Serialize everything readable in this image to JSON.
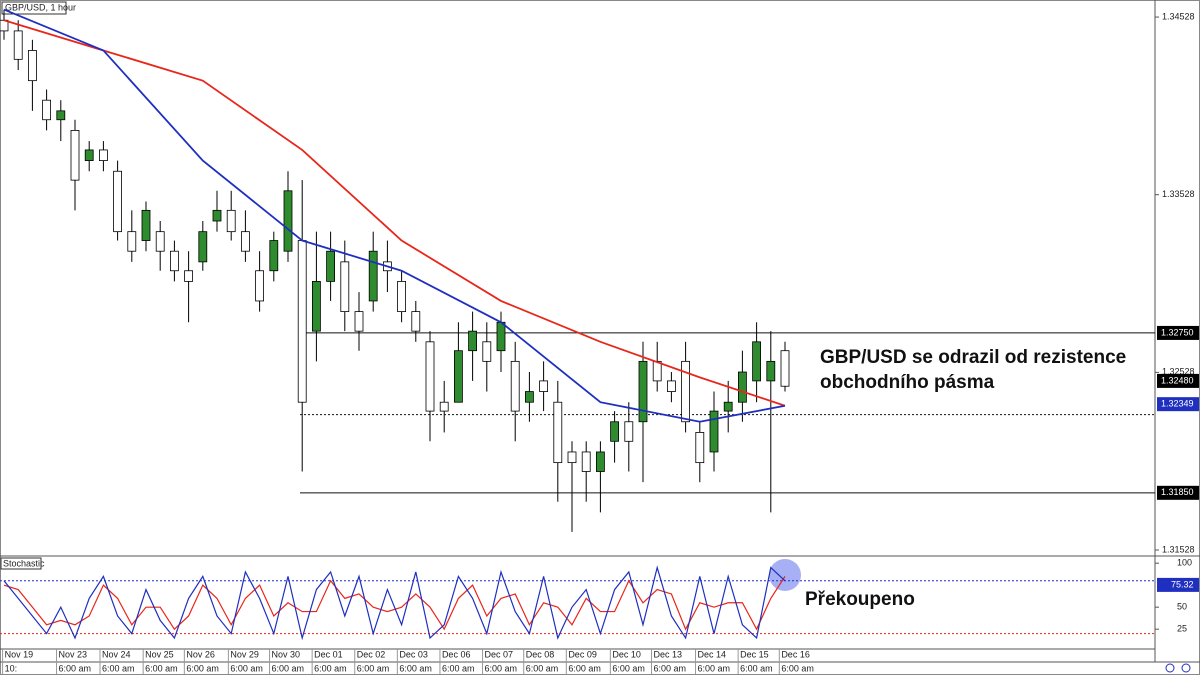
{
  "chart_data": {
    "type": "candlestick",
    "title": "GBP/USD, 1 hour",
    "up_color": "#2e8b2e",
    "down_color": "#ffffff",
    "wick_color": "#000000",
    "ylim": [
      1.315,
      1.34624
    ],
    "yticks": [
      1.34528,
      1.33528,
      1.32528,
      1.31528
    ],
    "xticks": [
      {
        "value": -0.1,
        "label": "Nov 19"
      },
      {
        "value": 3.7,
        "label": "Nov 23"
      },
      {
        "value": 6.76,
        "label": "Nov 24"
      },
      {
        "value": 9.8,
        "label": "Nov 25"
      },
      {
        "value": 12.7,
        "label": "Nov 26"
      },
      {
        "value": 15.8,
        "label": "Nov 29"
      },
      {
        "value": 18.7,
        "label": "Nov 30"
      },
      {
        "value": 21.7,
        "label": "Dec 01"
      },
      {
        "value": 24.7,
        "label": "Dec 02"
      },
      {
        "value": 27.7,
        "label": "Dec 03"
      },
      {
        "value": 30.7,
        "label": "Dec 06"
      },
      {
        "value": 33.7,
        "label": "Dec 07"
      },
      {
        "value": 36.6,
        "label": "Dec 08"
      },
      {
        "value": 39.6,
        "label": "Dec 09"
      },
      {
        "value": 42.7,
        "label": "Dec 10"
      },
      {
        "value": 45.6,
        "label": "Dec 13"
      },
      {
        "value": 48.7,
        "label": "Dec 14"
      },
      {
        "value": 51.7,
        "label": "Dec 15"
      },
      {
        "value": 54.6,
        "label": "Dec 16"
      }
    ],
    "xtick_times": [
      "10:",
      "6:00 am",
      "6:00 am",
      "6:00 am",
      "6:00 am",
      "6:00 am",
      "6:00 am",
      "6:00 am",
      "6:00 am",
      "6:00 am",
      "6:00 am",
      "6:00 am",
      "6:00 am",
      "6:00 am",
      "6:00 am",
      "6:00 am",
      "6:00 am",
      "6:00 am",
      "6:00 am"
    ],
    "ohlc": [
      [
        1.3451,
        1.3457,
        1.344,
        1.3445
      ],
      [
        1.3445,
        1.3451,
        1.3423,
        1.3429
      ],
      [
        1.3434,
        1.344,
        1.34,
        1.3417
      ],
      [
        1.3406,
        1.3412,
        1.3389,
        1.3395
      ],
      [
        1.3395,
        1.3406,
        1.3383,
        1.34
      ],
      [
        1.3389,
        1.3395,
        1.3344,
        1.3361
      ],
      [
        1.3372,
        1.3383,
        1.3366,
        1.3378
      ],
      [
        1.3378,
        1.3383,
        1.3366,
        1.3372
      ],
      [
        1.3366,
        1.3372,
        1.3327,
        1.3332
      ],
      [
        1.3332,
        1.3344,
        1.3315,
        1.3321
      ],
      [
        1.3327,
        1.3349,
        1.3321,
        1.3344
      ],
      [
        1.3332,
        1.3338,
        1.331,
        1.3321
      ],
      [
        1.3321,
        1.3327,
        1.3304,
        1.331
      ],
      [
        1.331,
        1.3321,
        1.3281,
        1.3304
      ],
      [
        1.3315,
        1.3338,
        1.331,
        1.3332
      ],
      [
        1.3338,
        1.3355,
        1.3332,
        1.3344
      ],
      [
        1.3344,
        1.3355,
        1.3327,
        1.3332
      ],
      [
        1.3332,
        1.3344,
        1.3315,
        1.3321
      ],
      [
        1.331,
        1.3321,
        1.3287,
        1.3293
      ],
      [
        1.331,
        1.3332,
        1.3304,
        1.3327
      ],
      [
        1.3321,
        1.3366,
        1.3315,
        1.3355
      ],
      [
        1.3327,
        1.3361,
        1.3197,
        1.3236
      ],
      [
        1.3276,
        1.3332,
        1.3259,
        1.3304
      ],
      [
        1.3304,
        1.3332,
        1.3293,
        1.3321
      ],
      [
        1.3315,
        1.3327,
        1.3276,
        1.3287
      ],
      [
        1.3287,
        1.3298,
        1.3265,
        1.3276
      ],
      [
        1.3293,
        1.3332,
        1.3287,
        1.3321
      ],
      [
        1.3315,
        1.3327,
        1.3298,
        1.331
      ],
      [
        1.3304,
        1.331,
        1.3281,
        1.3287
      ],
      [
        1.3287,
        1.3293,
        1.327,
        1.3276
      ],
      [
        1.327,
        1.3276,
        1.3214,
        1.3231
      ],
      [
        1.3236,
        1.3248,
        1.3219,
        1.3231
      ],
      [
        1.3236,
        1.3281,
        1.3236,
        1.3265
      ],
      [
        1.3265,
        1.3287,
        1.3248,
        1.3276
      ],
      [
        1.327,
        1.3281,
        1.3242,
        1.3259
      ],
      [
        1.3265,
        1.3287,
        1.3253,
        1.3281
      ],
      [
        1.3259,
        1.327,
        1.3214,
        1.3231
      ],
      [
        1.3236,
        1.3253,
        1.3225,
        1.3242
      ],
      [
        1.3248,
        1.3259,
        1.3231,
        1.3242
      ],
      [
        1.3236,
        1.3248,
        1.318,
        1.3202
      ],
      [
        1.3208,
        1.3214,
        1.3163,
        1.3202
      ],
      [
        1.3208,
        1.3214,
        1.318,
        1.3197
      ],
      [
        1.3197,
        1.3214,
        1.3174,
        1.3208
      ],
      [
        1.3214,
        1.3231,
        1.3202,
        1.3225
      ],
      [
        1.3225,
        1.3236,
        1.3197,
        1.3214
      ],
      [
        1.3225,
        1.327,
        1.3191,
        1.3259
      ],
      [
        1.3259,
        1.327,
        1.3242,
        1.3248
      ],
      [
        1.3248,
        1.3253,
        1.3236,
        1.3242
      ],
      [
        1.3259,
        1.327,
        1.3219,
        1.3225
      ],
      [
        1.3219,
        1.3225,
        1.3191,
        1.3202
      ],
      [
        1.3208,
        1.3242,
        1.3197,
        1.3231
      ],
      [
        1.3231,
        1.3248,
        1.3219,
        1.3236
      ],
      [
        1.3236,
        1.3265,
        1.3225,
        1.3253
      ],
      [
        1.3248,
        1.3281,
        1.3236,
        1.327
      ],
      [
        1.3248,
        1.3276,
        1.3174,
        1.3259
      ],
      [
        1.3265,
        1.327,
        1.3242,
        1.3245
      ]
    ],
    "ma_x": [
      0,
      7,
      14,
      21,
      28,
      35,
      42,
      49,
      55
    ],
    "moving_averages": [
      {
        "color": "#e8261b",
        "values": [
          1.3451,
          1.3434,
          1.3417,
          1.3378,
          1.3327,
          1.3293,
          1.327,
          1.325,
          1.3234
        ]
      },
      {
        "color": "#1f2fc0",
        "values": [
          1.3457,
          1.3434,
          1.3372,
          1.3327,
          1.331,
          1.3281,
          1.3236,
          1.3225,
          1.3234
        ]
      }
    ],
    "levels": [
      {
        "value": 1.3275,
        "label": "1.32750",
        "style": "solid",
        "box": "#000000"
      },
      {
        "value": 1.3185,
        "label": "1.31850",
        "style": "solid",
        "box": "#000000"
      },
      {
        "value": 1.3229,
        "style": "dotted"
      }
    ],
    "price_tags": [
      {
        "value": 1.3248,
        "label": "1.32480",
        "box": "#000000"
      },
      {
        "value": 1.32349,
        "label": "1.32349",
        "box": "#1f2fc0"
      }
    ],
    "annotation": [
      "GBP/USD se odrazil od rezistence",
      "obchodního pásma"
    ],
    "stochastic": {
      "title": "Stochastic",
      "ylim": [
        -10,
        107
      ],
      "yticks": [
        25,
        50,
        100
      ],
      "overbought": 80,
      "oversold": 20,
      "current": 75.32,
      "note": "Překoupeno",
      "k_color": "#1f2fc0",
      "d_color": "#e8261b",
      "k": [
        80,
        60,
        40,
        20,
        50,
        15,
        60,
        85,
        40,
        20,
        70,
        35,
        15,
        60,
        85,
        40,
        20,
        90,
        60,
        20,
        85,
        15,
        70,
        90,
        40,
        85,
        20,
        70,
        30,
        90,
        15,
        30,
        85,
        60,
        20,
        90,
        45,
        20,
        85,
        15,
        50,
        70,
        20,
        70,
        90,
        30,
        95,
        40,
        15,
        85,
        20,
        85,
        30,
        15,
        95,
        80
      ],
      "d": [
        75,
        70,
        50,
        30,
        35,
        30,
        40,
        75,
        60,
        30,
        50,
        50,
        25,
        40,
        75,
        60,
        30,
        60,
        75,
        40,
        55,
        45,
        45,
        80,
        60,
        65,
        50,
        45,
        50,
        65,
        50,
        25,
        60,
        75,
        40,
        60,
        65,
        30,
        55,
        50,
        30,
        60,
        45,
        45,
        80,
        55,
        70,
        65,
        25,
        55,
        50,
        55,
        55,
        25,
        60,
        85
      ]
    }
  }
}
